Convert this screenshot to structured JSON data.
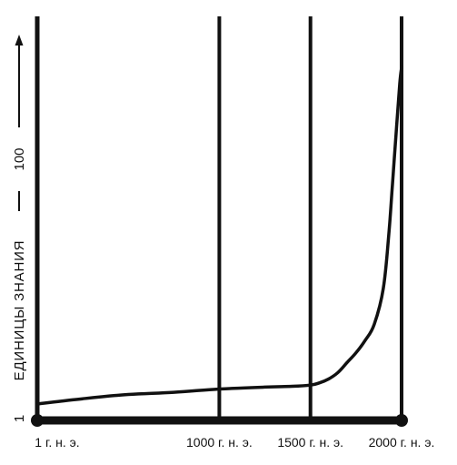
{
  "chart_data": {
    "type": "line",
    "title": "",
    "xlabel": "",
    "ylabel": "ЕДИНИЦЫ ЗНАНИЯ",
    "x_ticks": [
      {
        "value": 1,
        "label": "1 г. н. э."
      },
      {
        "value": 1000,
        "label": "1000 г. н. э."
      },
      {
        "value": 1500,
        "label": "1500 г. н. э."
      },
      {
        "value": 2000,
        "label": "2000 г. н. э."
      }
    ],
    "y_ticks": [
      {
        "value": 1,
        "label": "1"
      },
      {
        "value": 100,
        "label": "100"
      }
    ],
    "vertical_lines": [
      1,
      1000,
      1500,
      2000
    ],
    "xlim": [
      1,
      2000
    ],
    "ylim": [
      1,
      140
    ],
    "grid": false,
    "legend": "none",
    "series": [
      {
        "x": [
          1,
          250,
          500,
          750,
          1000,
          1250,
          1400,
          1500,
          1550,
          1600,
          1650,
          1700,
          1750,
          1800,
          1850,
          1900,
          1930,
          1950,
          1970,
          1990,
          2000
        ],
        "y": [
          1.4,
          3.5,
          5.2,
          6.1,
          7.4,
          8.2,
          8.5,
          9.0,
          9.9,
          11.5,
          14,
          18,
          22,
          27,
          33.5,
          48,
          70,
          90,
          110,
          129,
          135
        ]
      }
    ]
  },
  "colors": {
    "ink": "#111111",
    "background": "#ffffff"
  }
}
